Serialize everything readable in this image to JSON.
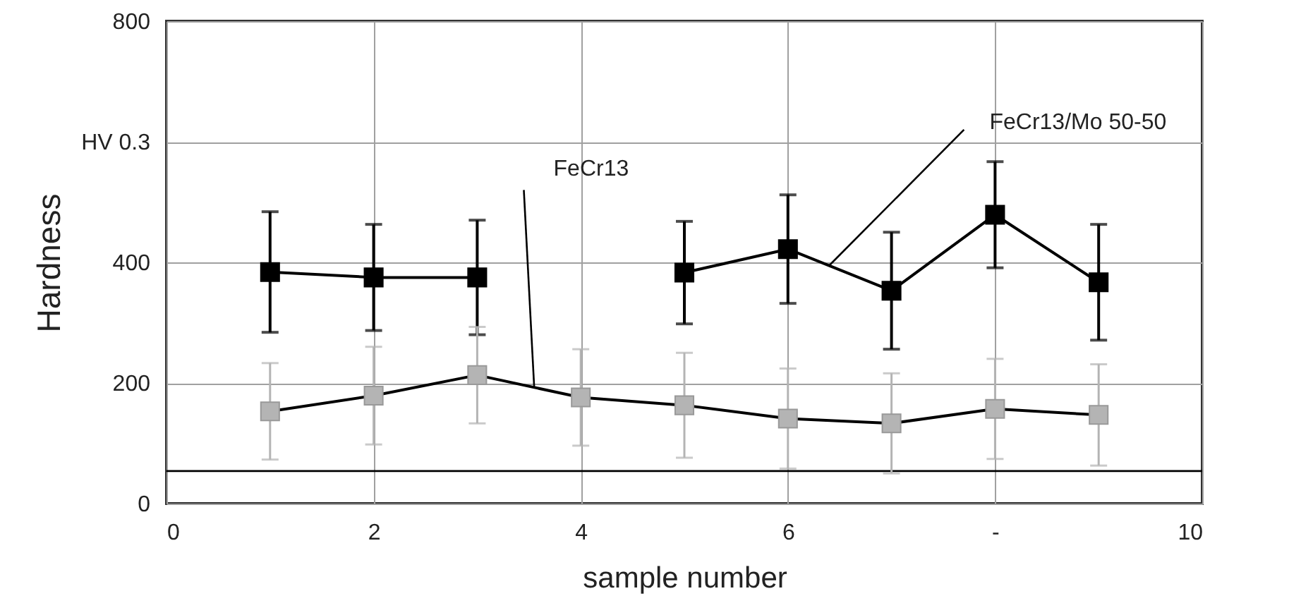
{
  "chart_data": {
    "type": "line",
    "xlabel": "sample number",
    "ylabel": "Hardness",
    "x": [
      1,
      2,
      3,
      4,
      5,
      6,
      7,
      8,
      9
    ],
    "series": [
      {
        "name": "FeCr13/Mo 50-50",
        "color": "#000000",
        "values": [
          384,
          375,
          375,
          null,
          383,
          422,
          353,
          479,
          367
        ],
        "errors": [
          100,
          88,
          95,
          null,
          85,
          90,
          97,
          88,
          96
        ]
      },
      {
        "name": "FeCr13",
        "color": "#b4b4b4",
        "values": [
          153,
          179,
          213,
          176,
          163,
          141,
          133,
          157,
          147
        ],
        "errors": [
          80,
          81,
          80,
          80,
          87,
          83,
          83,
          83,
          84
        ]
      }
    ],
    "xlim": [
      0,
      10
    ],
    "xticks": [
      0,
      2,
      4,
      6,
      {
        "value": 8,
        "label": "-"
      },
      10
    ],
    "ylim": [
      0,
      800
    ],
    "yticks": [
      0,
      200,
      400,
      {
        "value": 600,
        "label": "HV 0.3"
      },
      800
    ],
    "ref_lines": [
      {
        "axis": "y",
        "value": 54,
        "color": "#000000"
      }
    ],
    "grid": true,
    "marker": "square",
    "line_style": "solid",
    "legend": false
  }
}
